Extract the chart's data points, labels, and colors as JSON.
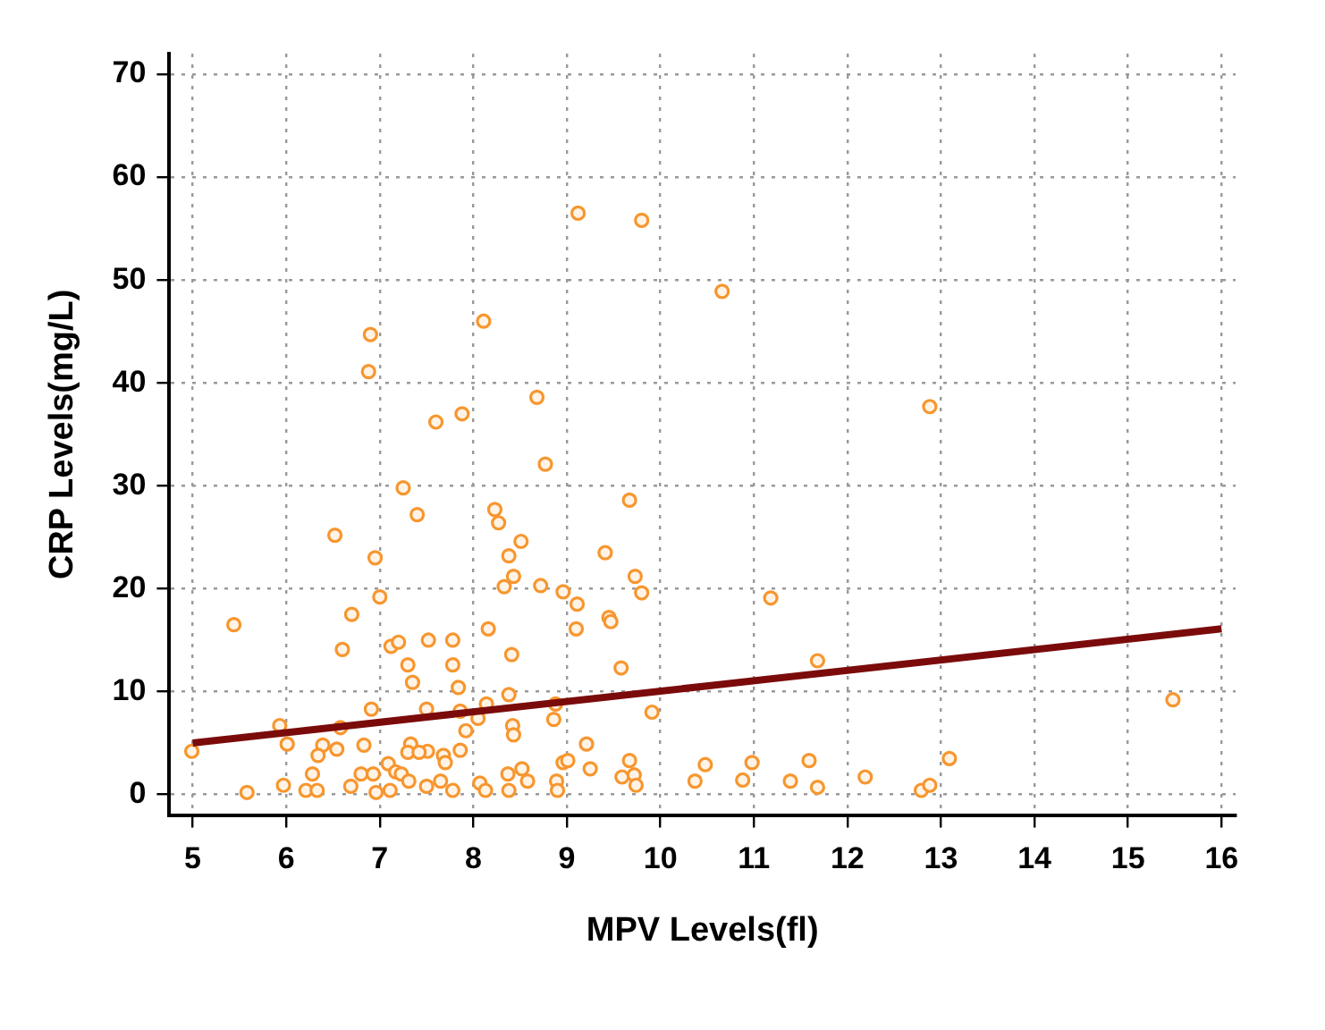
{
  "chart_data": {
    "type": "scatter",
    "xlabel": "MPV Levels(fl)",
    "ylabel": "CRP Levels(mg/L)",
    "xlim": [
      4.75,
      16.15
    ],
    "ylim": [
      -2,
      72
    ],
    "xticks": [
      5,
      6,
      7,
      8,
      9,
      10,
      11,
      12,
      13,
      14,
      15,
      16
    ],
    "yticks": [
      0,
      10,
      20,
      30,
      40,
      50,
      60,
      70
    ],
    "grid": true,
    "legend": false,
    "marker": "circle",
    "series": [
      {
        "color": "#f7962e",
        "x": [
          8.11,
          6.9,
          6.88,
          8.68,
          7.6,
          7.88,
          8.77,
          7.25,
          7.4,
          8.23,
          8.27,
          8.51,
          8.38,
          6.52,
          6.95,
          8.43,
          8.33,
          8.72,
          7.0,
          5.44,
          6.7,
          8.16,
          6.6,
          7.12,
          7.2,
          7.52,
          7.78,
          8.41,
          7.3,
          7.78,
          7.35,
          7.84,
          8.38,
          6.91,
          7.5,
          7.86,
          8.14,
          8.05,
          5.93,
          6.58,
          7.92,
          8.42,
          8.43,
          6.01,
          6.39,
          6.54,
          6.83,
          6.34,
          7.33,
          7.3,
          7.51,
          7.42,
          7.68,
          7.7,
          7.86,
          7.09,
          7.17,
          7.23,
          7.31,
          6.8,
          6.93,
          6.28,
          6.69,
          6.21,
          6.33,
          5.97,
          5.58,
          6.96,
          7.11,
          7.5,
          7.65,
          7.78,
          8.07,
          8.13,
          8.37,
          8.38,
          8.52,
          8.58,
          4.99,
          9.12,
          9.8,
          10.66,
          9.67,
          9.41,
          9.73,
          9.8,
          8.96,
          9.11,
          9.45,
          9.47,
          9.1,
          11.18,
          9.58,
          11.68,
          8.88,
          8.86,
          9.91,
          9.21,
          8.96,
          9.01,
          9.25,
          9.67,
          9.59,
          9.72,
          9.74,
          8.89,
          8.9,
          10.48,
          10.37,
          10.98,
          10.88,
          11.39,
          11.59,
          11.68,
          12.19,
          12.79,
          12.88,
          13.09,
          12.88,
          15.48
        ],
        "values": [
          46.0,
          44.7,
          41.1,
          38.6,
          36.2,
          37.0,
          32.1,
          29.8,
          27.2,
          27.7,
          26.4,
          24.6,
          23.2,
          25.2,
          23.0,
          21.2,
          20.2,
          20.3,
          19.2,
          16.5,
          17.5,
          16.1,
          14.1,
          14.4,
          14.8,
          15.0,
          15.0,
          13.6,
          12.6,
          12.6,
          10.9,
          10.4,
          9.7,
          8.3,
          8.3,
          8.1,
          8.8,
          7.4,
          6.7,
          6.5,
          6.2,
          6.7,
          5.8,
          4.9,
          4.8,
          4.4,
          4.8,
          3.8,
          4.9,
          4.1,
          4.2,
          4.1,
          3.8,
          3.1,
          4.3,
          3.0,
          2.2,
          2.0,
          1.3,
          2.0,
          2.0,
          2.0,
          0.8,
          0.4,
          0.4,
          0.9,
          0.2,
          0.2,
          0.4,
          0.8,
          1.3,
          0.4,
          1.1,
          0.4,
          2.0,
          0.4,
          2.5,
          1.3,
          4.2,
          56.5,
          55.8,
          48.9,
          28.6,
          23.5,
          21.2,
          19.6,
          19.7,
          18.5,
          17.2,
          16.8,
          16.1,
          19.1,
          12.3,
          13.0,
          8.8,
          7.3,
          8.0,
          4.9,
          3.1,
          3.3,
          2.5,
          3.3,
          1.7,
          1.9,
          0.9,
          1.3,
          0.4,
          2.9,
          1.3,
          3.1,
          1.4,
          1.3,
          3.3,
          0.7,
          1.7,
          0.4,
          0.9,
          3.5,
          37.7,
          9.2
        ]
      },
      {
        "type": "line",
        "color": "#7b0b0b",
        "x": [
          5,
          16
        ],
        "values": [
          5.0,
          16.1
        ],
        "marker": "none",
        "line_style": "solid"
      }
    ]
  }
}
